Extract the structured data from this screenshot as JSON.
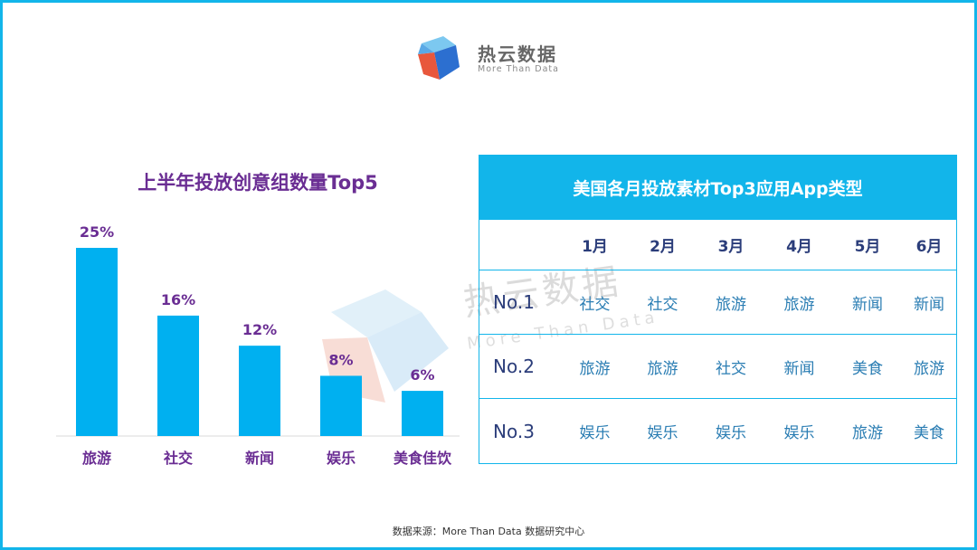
{
  "brand": {
    "name_cn": "热云数据",
    "name_en": "More Than Data",
    "colors": {
      "accent": "#12b5ea",
      "logo_blue": "#2c6fd0",
      "logo_light": "#7cc8f0",
      "logo_orange": "#e8573c"
    }
  },
  "watermark": {
    "cn": "热云数据",
    "en": "More Than Data"
  },
  "chart_data": {
    "type": "bar",
    "title": "上半年投放创意组数量Top5",
    "categories": [
      "旅游",
      "社交",
      "新闻",
      "娱乐",
      "美食佳饮"
    ],
    "values": [
      25,
      16,
      12,
      8,
      6
    ],
    "value_labels": [
      "25%",
      "16%",
      "12%",
      "8%",
      "6%"
    ],
    "unit": "%",
    "ylim": [
      0,
      25
    ],
    "grid": false,
    "legend": "none",
    "colors": {
      "bar": "#00b0f0",
      "title": "#6a2d93",
      "labels": "#6a2d93"
    }
  },
  "table": {
    "title": "美国各月投放素材Top3应用App类型",
    "months": [
      "1月",
      "2月",
      "3月",
      "4月",
      "5月",
      "6月"
    ],
    "rows": [
      {
        "rank": "No.1",
        "values": [
          "社交",
          "社交",
          "旅游",
          "旅游",
          "新闻",
          "新闻"
        ]
      },
      {
        "rank": "No.2",
        "values": [
          "旅游",
          "旅游",
          "社交",
          "新闻",
          "美食",
          "旅游"
        ]
      },
      {
        "rank": "No.3",
        "values": [
          "娱乐",
          "娱乐",
          "娱乐",
          "娱乐",
          "旅游",
          "美食"
        ]
      }
    ]
  },
  "source": "数据来源：More Than Data 数据研究中心"
}
